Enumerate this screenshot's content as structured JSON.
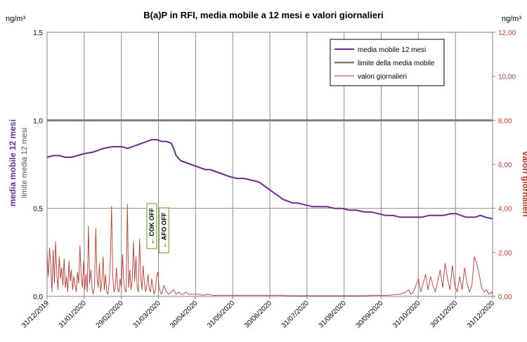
{
  "chart_data": {
    "type": "line",
    "title": "B(a)P in RFI, media mobile a 12 mesi e valori giornalieri",
    "left_unit": "ng/m³",
    "right_unit": "ng/m³",
    "ylabel_left_main": "media mobile 12 mesi",
    "ylabel_left_sub": "limite media 12 mesi",
    "ylabel_right": "valori giornalieri",
    "ylim_left": [
      0,
      1.5
    ],
    "ylim_right": [
      0,
      12
    ],
    "left_ticks": [
      "0,0",
      "0,5",
      "1,0",
      "1,5"
    ],
    "right_ticks": [
      "0,00",
      "2,00",
      "4,00",
      "6,00",
      "8,00",
      "10,00",
      "12,00"
    ],
    "x_tick_labels": [
      "31/12/2019",
      "31/01/2020",
      "29/02/2020",
      "31/03/2020",
      "30/04/2020",
      "31/05/2020",
      "30/06/2020",
      "31/07/2020",
      "31/08/2020",
      "30/09/2020",
      "31/10/2020",
      "30/11/2020",
      "31/12/2020"
    ],
    "x_day_range": [
      0,
      366
    ],
    "legend": [
      "media mobile 12 mesi",
      "limite della media mobile",
      "valori giornalieri"
    ],
    "legend_position": "top-right",
    "colors": {
      "media": "#6a2c8f",
      "limite": "#7f7f7f",
      "giornalieri": "#b23a32"
    },
    "limit_value": 1.0,
    "annotations": [
      {
        "text": "← COK OFF",
        "day": 86
      },
      {
        "text": "← AFO OFF",
        "day": 96
      }
    ],
    "series": [
      {
        "name": "media mobile 12 mesi",
        "axis": "left",
        "x_days": [
          0,
          5,
          10,
          15,
          20,
          25,
          30,
          38,
          46,
          54,
          62,
          66,
          70,
          74,
          78,
          82,
          86,
          90,
          94,
          98,
          102,
          104,
          106,
          110,
          114,
          118,
          122,
          126,
          130,
          134,
          138,
          142,
          146,
          150,
          156,
          162,
          168,
          174,
          178,
          182,
          186,
          190,
          194,
          198,
          202,
          206,
          212,
          218,
          224,
          230,
          236,
          242,
          248,
          254,
          260,
          266,
          272,
          278,
          284,
          290,
          296,
          302,
          308,
          314,
          320,
          326,
          332,
          336,
          340,
          344,
          348,
          352,
          356,
          360,
          366
        ],
        "values": [
          0.79,
          0.8,
          0.8,
          0.79,
          0.79,
          0.8,
          0.81,
          0.82,
          0.84,
          0.85,
          0.85,
          0.84,
          0.85,
          0.86,
          0.87,
          0.88,
          0.89,
          0.89,
          0.88,
          0.88,
          0.87,
          0.84,
          0.8,
          0.77,
          0.76,
          0.75,
          0.74,
          0.73,
          0.72,
          0.72,
          0.71,
          0.7,
          0.69,
          0.68,
          0.67,
          0.67,
          0.66,
          0.65,
          0.63,
          0.61,
          0.59,
          0.57,
          0.55,
          0.54,
          0.53,
          0.53,
          0.52,
          0.51,
          0.51,
          0.51,
          0.5,
          0.5,
          0.49,
          0.49,
          0.48,
          0.48,
          0.47,
          0.46,
          0.46,
          0.45,
          0.45,
          0.45,
          0.45,
          0.46,
          0.46,
          0.46,
          0.47,
          0.47,
          0.46,
          0.45,
          0.45,
          0.45,
          0.46,
          0.45,
          0.44
        ]
      },
      {
        "name": "valori giornalieri",
        "axis": "right",
        "x_days": [
          0,
          1,
          2,
          3,
          4,
          5,
          6,
          7,
          8,
          9,
          10,
          11,
          12,
          13,
          14,
          15,
          16,
          17,
          18,
          19,
          20,
          21,
          22,
          23,
          24,
          25,
          26,
          27,
          28,
          29,
          30,
          31,
          32,
          33,
          34,
          35,
          36,
          37,
          38,
          39,
          40,
          41,
          42,
          43,
          44,
          45,
          46,
          47,
          48,
          49,
          50,
          51,
          52,
          53,
          54,
          55,
          56,
          57,
          58,
          59,
          60,
          61,
          62,
          63,
          64,
          65,
          66,
          67,
          68,
          69,
          70,
          71,
          72,
          73,
          74,
          75,
          76,
          77,
          78,
          79,
          80,
          81,
          82,
          83,
          84,
          85,
          86,
          87,
          88,
          89,
          90,
          91,
          92,
          93,
          94,
          95,
          96,
          98,
          100,
          102,
          104,
          106,
          108,
          110,
          112,
          114,
          116,
          118,
          120,
          124,
          128,
          132,
          136,
          140,
          144,
          150,
          160,
          170,
          180,
          190,
          200,
          210,
          220,
          230,
          240,
          250,
          260,
          270,
          280,
          290,
          295,
          297,
          299,
          301,
          303,
          305,
          307,
          309,
          311,
          313,
          315,
          317,
          319,
          321,
          323,
          325,
          327,
          329,
          331,
          333,
          335,
          337,
          339,
          341,
          343,
          345,
          347,
          349,
          351,
          353,
          355,
          357,
          359,
          361,
          363,
          365,
          366
        ],
        "values": [
          2.0,
          0.9,
          2.2,
          1.4,
          0.2,
          2.1,
          0.6,
          2.5,
          1.0,
          0.3,
          1.8,
          0.8,
          1.3,
          0.5,
          1.7,
          0.4,
          0.9,
          0.2,
          1.6,
          0.7,
          1.2,
          0.3,
          0.9,
          0.5,
          0.2,
          1.1,
          0.6,
          2.3,
          0.9,
          0.4,
          1.6,
          0.3,
          1.0,
          0.2,
          3.2,
          0.6,
          1.2,
          0.3,
          0.1,
          0.5,
          3.1,
          0.9,
          0.4,
          1.5,
          0.2,
          0.7,
          1.8,
          0.3,
          1.0,
          0.2,
          0.1,
          0.6,
          1.7,
          4.1,
          0.9,
          0.2,
          0.4,
          1.3,
          0.3,
          0.2,
          0.8,
          0.4,
          1.9,
          0.6,
          0.3,
          0.2,
          4.2,
          0.4,
          1.2,
          0.3,
          0.8,
          2.5,
          0.7,
          1.8,
          0.4,
          0.2,
          2.6,
          0.9,
          0.3,
          1.4,
          0.6,
          0.2,
          0.5,
          1.0,
          0.3,
          0.2,
          0.8,
          0.4,
          0.1,
          0.3,
          0.9,
          1.1,
          0.4,
          0.2,
          0.1,
          0.3,
          0.5,
          0.2,
          0.1,
          0.2,
          0.3,
          0.1,
          0.2,
          0.1,
          0.1,
          0.2,
          0.1,
          0.1,
          0.1,
          0.1,
          0.05,
          0.1,
          0.05,
          0.05,
          0.05,
          0.05,
          0.05,
          0.05,
          0.05,
          0.05,
          0.03,
          0.03,
          0.03,
          0.03,
          0.03,
          0.03,
          0.03,
          0.05,
          0.05,
          0.1,
          0.2,
          0.3,
          0.1,
          0.2,
          0.5,
          0.8,
          0.2,
          0.6,
          1.0,
          0.3,
          0.9,
          0.5,
          0.2,
          0.7,
          1.2,
          0.4,
          1.5,
          0.8,
          0.3,
          1.4,
          0.5,
          0.2,
          0.9,
          0.3,
          1.3,
          0.6,
          0.2,
          0.5,
          1.8,
          1.5,
          1.0,
          0.4,
          0.2,
          0.3,
          0.1,
          0.2,
          0.1
        ]
      }
    ]
  }
}
